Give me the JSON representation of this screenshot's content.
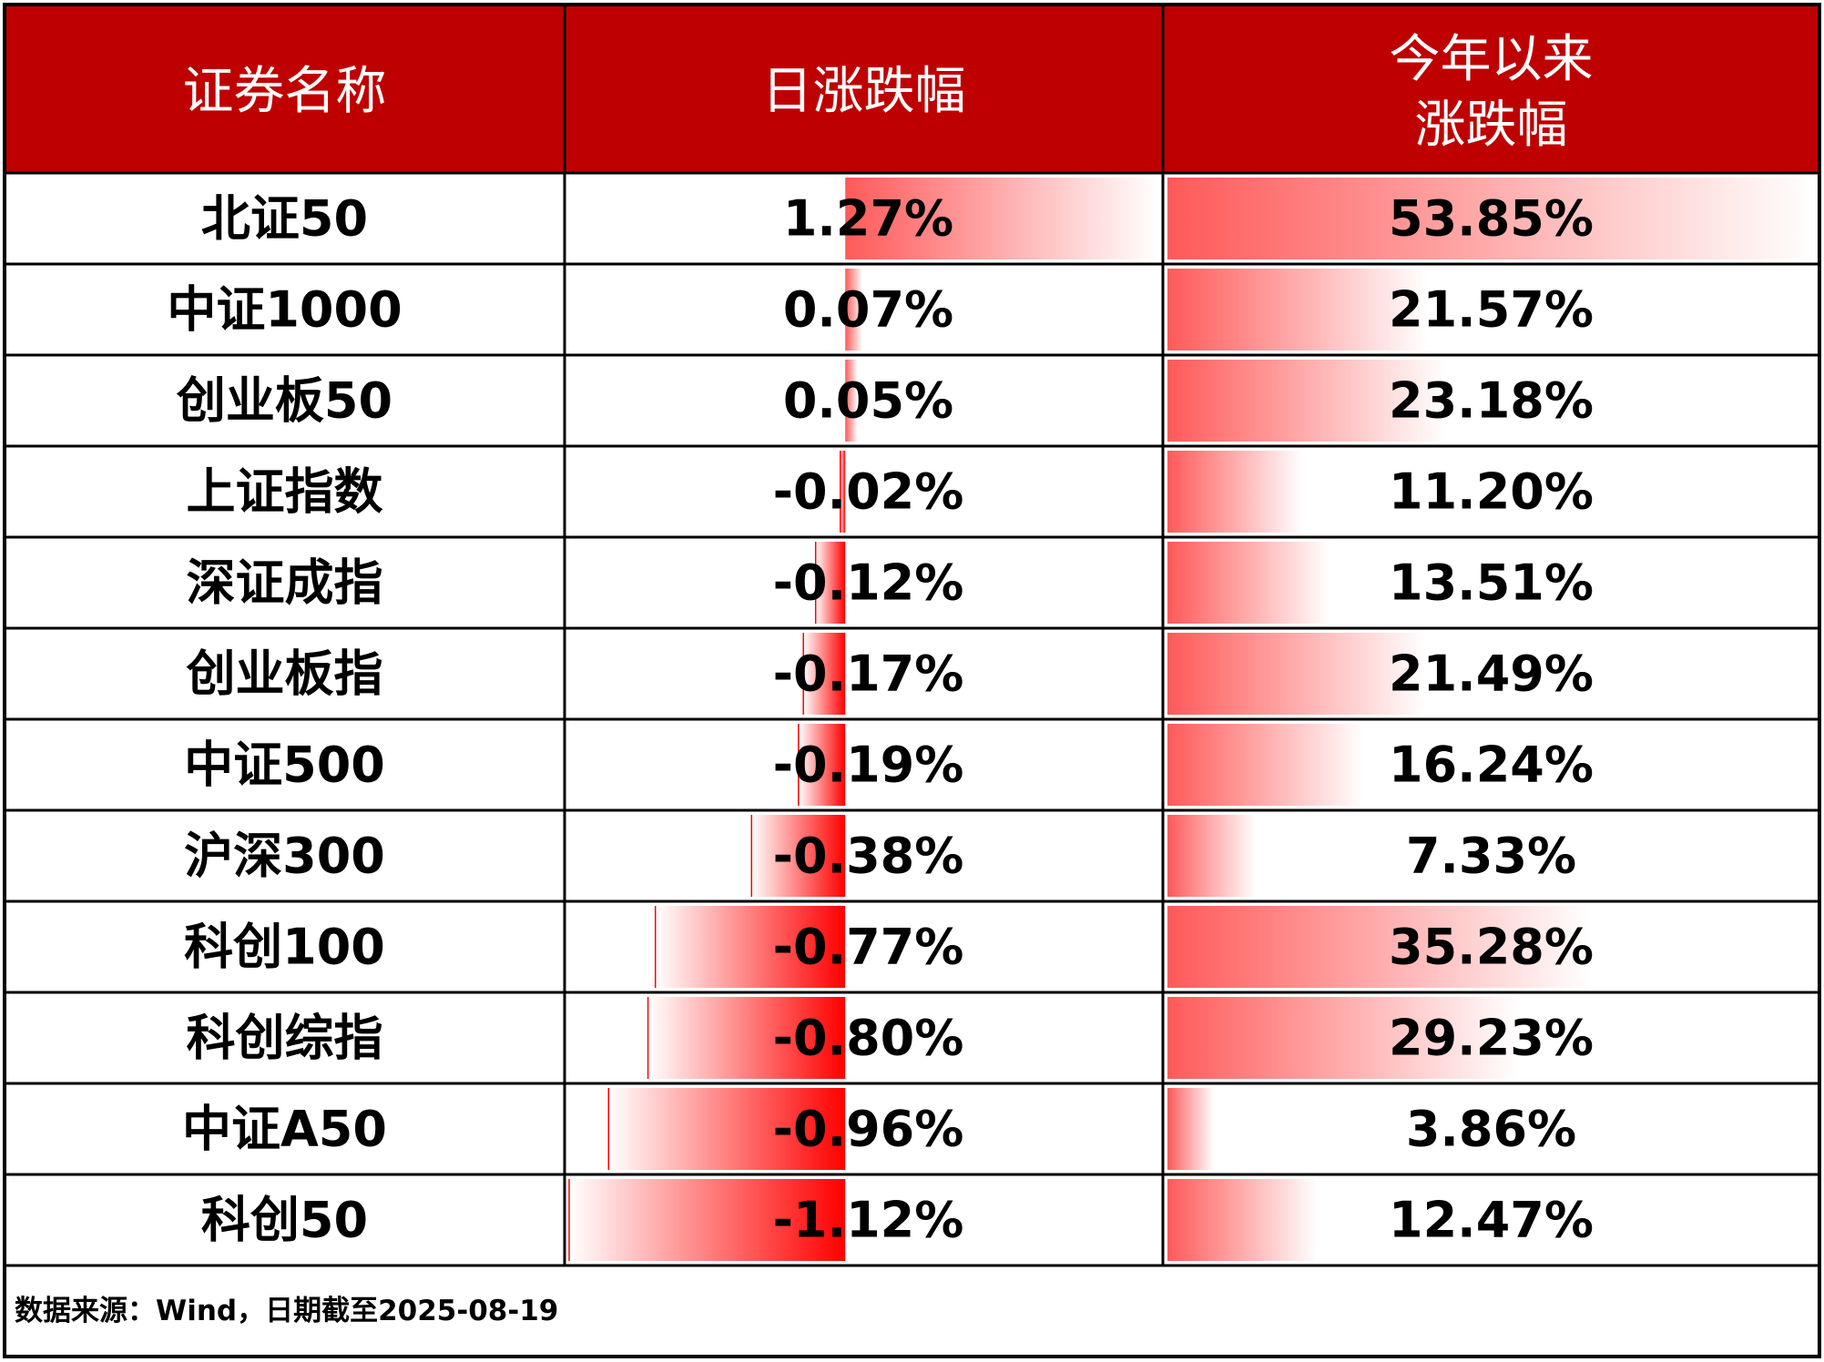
{
  "chart_data": {
    "type": "table",
    "headers": {
      "name": "证券名称",
      "daily": "日涨跌幅",
      "ytd_line1": "今年以来",
      "ytd_line2": "涨跌幅"
    },
    "rows": [
      {
        "name": "北证50",
        "daily": 1.27,
        "daily_label": "1.27%",
        "ytd": 53.85,
        "ytd_label": "53.85%"
      },
      {
        "name": "中证1000",
        "daily": 0.07,
        "daily_label": "0.07%",
        "ytd": 21.57,
        "ytd_label": "21.57%"
      },
      {
        "name": "创业板50",
        "daily": 0.05,
        "daily_label": "0.05%",
        "ytd": 23.18,
        "ytd_label": "23.18%"
      },
      {
        "name": "上证指数",
        "daily": -0.02,
        "daily_label": "-0.02%",
        "ytd": 11.2,
        "ytd_label": "11.20%"
      },
      {
        "name": "深证成指",
        "daily": -0.12,
        "daily_label": "-0.12%",
        "ytd": 13.51,
        "ytd_label": "13.51%"
      },
      {
        "name": "创业板指",
        "daily": -0.17,
        "daily_label": "-0.17%",
        "ytd": 21.49,
        "ytd_label": "21.49%"
      },
      {
        "name": "中证500",
        "daily": -0.19,
        "daily_label": "-0.19%",
        "ytd": 16.24,
        "ytd_label": "16.24%"
      },
      {
        "name": "沪深300",
        "daily": -0.38,
        "daily_label": "-0.38%",
        "ytd": 7.33,
        "ytd_label": "7.33%"
      },
      {
        "name": "科创100",
        "daily": -0.77,
        "daily_label": "-0.77%",
        "ytd": 35.28,
        "ytd_label": "35.28%"
      },
      {
        "name": "科创综指",
        "daily": -0.8,
        "daily_label": "-0.80%",
        "ytd": 29.23,
        "ytd_label": "29.23%"
      },
      {
        "name": "中证A50",
        "daily": -0.96,
        "daily_label": "-0.96%",
        "ytd": 3.86,
        "ytd_label": "3.86%"
      },
      {
        "name": "科创50",
        "daily": -1.12,
        "daily_label": "-1.12%",
        "ytd": 12.47,
        "ytd_label": "12.47%"
      }
    ],
    "daily_range": [
      -1.12,
      1.27
    ],
    "ytd_range": [
      0,
      53.85
    ],
    "source": "数据来源：Wind，日期截至2025-08-19",
    "colors": {
      "header_bg": "#BF0000",
      "header_text": "#FFFFFF",
      "bar": "#FF0000",
      "border": "#000000"
    }
  }
}
